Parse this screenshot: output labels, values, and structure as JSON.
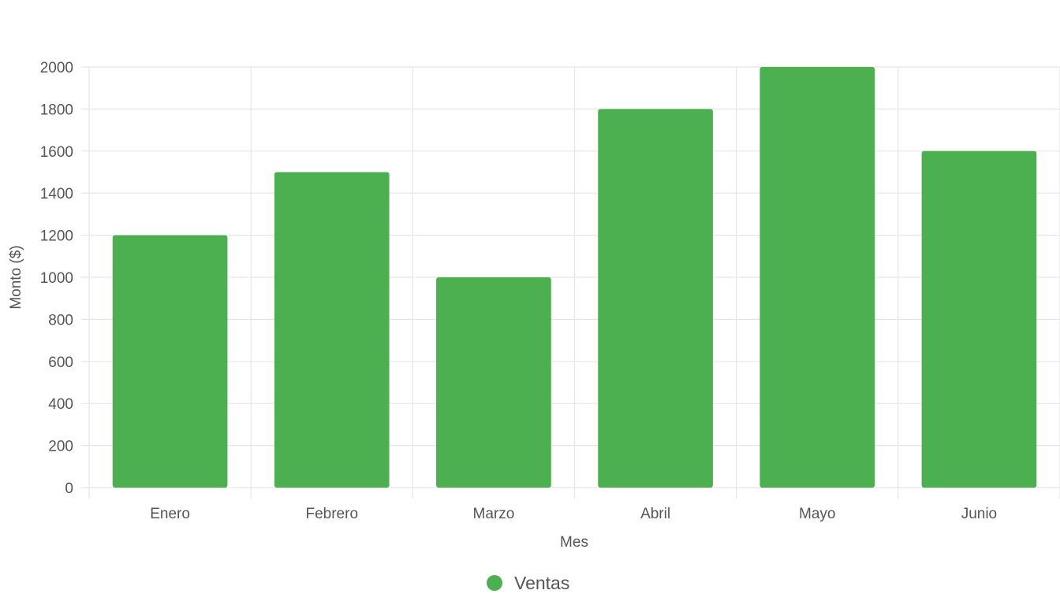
{
  "chart_data": {
    "type": "bar",
    "categories": [
      "Enero",
      "Febrero",
      "Marzo",
      "Abril",
      "Mayo",
      "Junio"
    ],
    "series": [
      {
        "name": "Ventas",
        "values": [
          1200,
          1500,
          1000,
          1800,
          2000,
          1600
        ],
        "color": "#4caf50"
      }
    ],
    "xlabel": "Mes",
    "ylabel": "Monto ($)",
    "ylim": [
      0,
      2000
    ],
    "yticks": [
      0,
      200,
      400,
      600,
      800,
      1000,
      1200,
      1400,
      1600,
      1800,
      2000
    ],
    "grid": true,
    "legend_position": "bottom-center",
    "colors": {
      "grid": "#e6e6e6",
      "text": "#555555"
    }
  }
}
